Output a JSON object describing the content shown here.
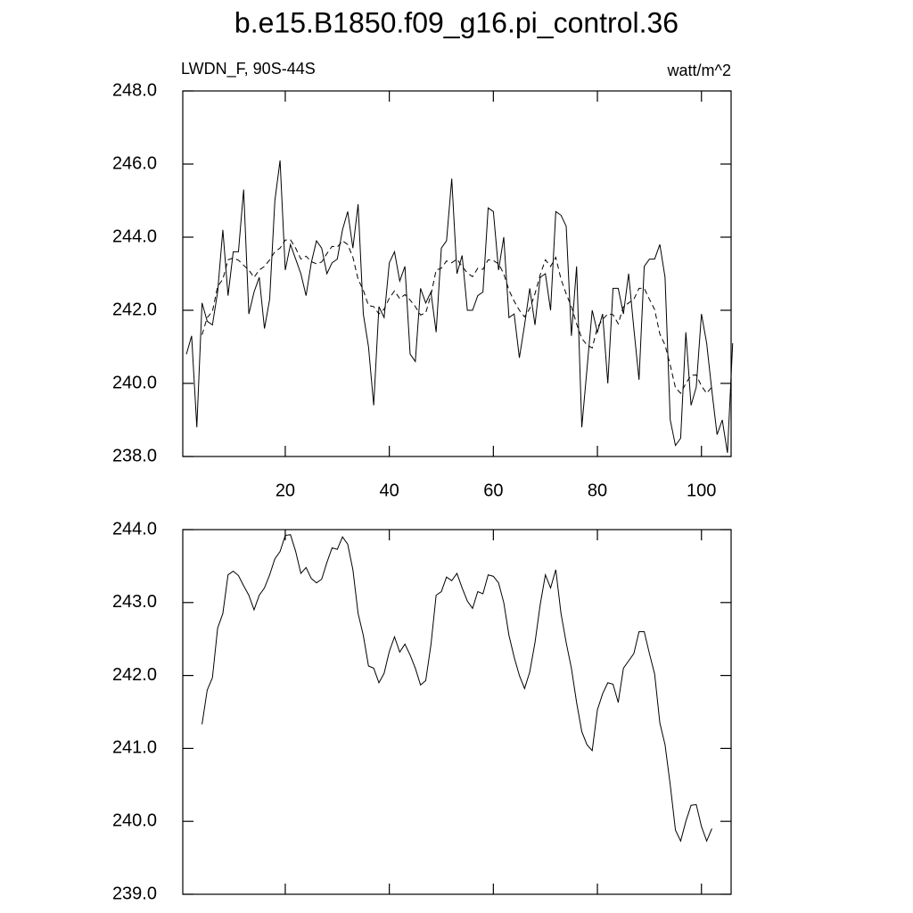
{
  "chart_data": [
    {
      "type": "line",
      "title": "b.e15.B1850.f09_g16.pi_control.36",
      "left_string": "LWDN_F, 90S-44S",
      "right_string": "watt/m^2",
      "xlim": [
        0.3,
        105.7
      ],
      "xticks": [
        20,
        40,
        60,
        80,
        100
      ],
      "xtick_labels": true,
      "ylim": [
        238,
        248
      ],
      "yticks": [
        {
          "value": 238,
          "label": "238.0"
        },
        {
          "value": 240,
          "label": "240.0"
        },
        {
          "value": 242,
          "label": "242.0"
        },
        {
          "value": 244,
          "label": "244.0"
        },
        {
          "value": 246,
          "label": "246.0"
        },
        {
          "value": 248,
          "label": "248.0"
        }
      ],
      "series": [
        {
          "color": "#000000",
          "dash": false,
          "x": [
            1,
            2,
            3,
            4,
            5,
            6,
            7,
            8,
            9,
            10,
            11,
            12,
            13,
            14,
            15,
            16,
            17,
            18,
            19,
            20,
            21,
            22,
            23,
            24,
            25,
            26,
            27,
            28,
            29,
            30,
            31,
            32,
            33,
            34,
            35,
            36,
            37,
            38,
            39,
            40,
            41,
            42,
            43,
            44,
            45,
            46,
            47,
            48,
            49,
            50,
            51,
            52,
            53,
            54,
            55,
            56,
            57,
            58,
            59,
            60,
            61,
            62,
            63,
            64,
            65,
            66,
            67,
            68,
            69,
            70,
            71,
            72,
            73,
            74,
            75,
            76,
            77,
            78,
            79,
            80,
            81,
            82,
            83,
            84,
            85,
            86,
            87,
            88,
            89,
            90,
            91,
            92,
            93,
            94,
            95,
            96,
            97,
            98,
            99,
            100,
            101,
            102,
            103,
            104,
            105,
            106
          ],
          "values": [
            240.8,
            241.3,
            238.8,
            242.2,
            241.7,
            241.6,
            242.5,
            244.2,
            242.4,
            243.6,
            243.6,
            245.3,
            241.9,
            242.5,
            242.9,
            241.5,
            242.3,
            245.0,
            246.1,
            243.1,
            243.8,
            243.4,
            243.0,
            242.4,
            243.3,
            243.9,
            243.7,
            243.0,
            243.3,
            243.4,
            244.2,
            244.7,
            243.7,
            244.9,
            241.9,
            241.0,
            239.4,
            242.1,
            241.8,
            243.3,
            243.6,
            242.8,
            243.2,
            240.8,
            240.6,
            242.6,
            242.2,
            242.5,
            241.4,
            243.7,
            243.9,
            245.6,
            243.0,
            243.5,
            242.0,
            242.0,
            242.4,
            242.5,
            244.8,
            244.7,
            243.1,
            244.0,
            241.8,
            241.9,
            240.7,
            241.6,
            242.6,
            241.6,
            242.9,
            243.0,
            242.0,
            244.7,
            244.6,
            244.3,
            241.3,
            243.2,
            238.8,
            240.4,
            242.0,
            241.4,
            241.9,
            240.0,
            242.6,
            242.6,
            241.9,
            243.0,
            241.5,
            240.1,
            243.2,
            243.4,
            243.4,
            243.8,
            242.9,
            239.0,
            238.3,
            238.5,
            241.4,
            239.4,
            239.9,
            241.9,
            241.1,
            239.8,
            238.6,
            239.0,
            238.1,
            241.1
          ]
        },
        {
          "color": "#000000",
          "dash": true,
          "x": [
            4,
            5,
            6,
            7,
            8,
            9,
            10,
            11,
            12,
            13,
            14,
            15,
            16,
            17,
            18,
            19,
            20,
            21,
            22,
            23,
            24,
            25,
            26,
            27,
            28,
            29,
            30,
            31,
            32,
            33,
            34,
            35,
            36,
            37,
            38,
            39,
            40,
            41,
            42,
            43,
            44,
            45,
            46,
            47,
            48,
            49,
            50,
            51,
            52,
            53,
            54,
            55,
            56,
            57,
            58,
            59,
            60,
            61,
            62,
            63,
            64,
            65,
            66,
            67,
            68,
            69,
            70,
            71,
            72,
            73,
            74,
            75,
            76,
            77,
            78,
            79,
            80,
            81,
            82,
            83,
            84,
            85,
            86,
            87,
            88,
            89,
            90,
            91,
            92,
            93,
            94,
            95,
            96,
            97,
            98,
            99,
            100,
            101,
            102
          ],
          "values": [
            241.33,
            241.8,
            241.97,
            242.65,
            242.85,
            243.38,
            243.43,
            243.37,
            243.23,
            243.1,
            242.9,
            243.1,
            243.2,
            243.38,
            243.6,
            243.7,
            243.92,
            243.93,
            243.7,
            243.4,
            243.48,
            243.33,
            243.27,
            243.32,
            243.55,
            243.75,
            243.73,
            243.9,
            243.8,
            243.45,
            242.85,
            242.55,
            242.13,
            242.1,
            241.9,
            242.03,
            242.33,
            242.53,
            242.32,
            242.43,
            242.28,
            242.1,
            241.87,
            241.93,
            242.42,
            243.1,
            243.15,
            243.35,
            243.3,
            243.4,
            243.2,
            243.02,
            242.92,
            243.15,
            243.12,
            243.38,
            243.36,
            243.27,
            243.0,
            242.55,
            242.25,
            242.0,
            241.82,
            242.05,
            242.45,
            242.97,
            243.38,
            243.2,
            243.45,
            242.85,
            242.45,
            242.1,
            241.63,
            241.23,
            241.05,
            240.97,
            241.53,
            241.75,
            241.9,
            241.88,
            241.63,
            242.1,
            242.2,
            242.3,
            242.6,
            242.6,
            242.3,
            242.02,
            241.35,
            241.05,
            240.5,
            239.88,
            239.73,
            240.0,
            240.22,
            240.23,
            239.93,
            239.73,
            239.9
          ]
        }
      ]
    },
    {
      "type": "line",
      "xlim": [
        0.3,
        105.7
      ],
      "xticks": [
        20,
        40,
        60,
        80,
        100
      ],
      "xtick_labels": false,
      "ylim": [
        239,
        244
      ],
      "yticks": [
        {
          "value": 239,
          "label": "239.0"
        },
        {
          "value": 240,
          "label": "240.0"
        },
        {
          "value": 241,
          "label": "241.0"
        },
        {
          "value": 242,
          "label": "242.0"
        },
        {
          "value": 243,
          "label": "243.0"
        },
        {
          "value": 244,
          "label": "244.0"
        }
      ],
      "series": [
        {
          "color": "#000000",
          "dash": false,
          "x": [
            4,
            5,
            6,
            7,
            8,
            9,
            10,
            11,
            12,
            13,
            14,
            15,
            16,
            17,
            18,
            19,
            20,
            21,
            22,
            23,
            24,
            25,
            26,
            27,
            28,
            29,
            30,
            31,
            32,
            33,
            34,
            35,
            36,
            37,
            38,
            39,
            40,
            41,
            42,
            43,
            44,
            45,
            46,
            47,
            48,
            49,
            50,
            51,
            52,
            53,
            54,
            55,
            56,
            57,
            58,
            59,
            60,
            61,
            62,
            63,
            64,
            65,
            66,
            67,
            68,
            69,
            70,
            71,
            72,
            73,
            74,
            75,
            76,
            77,
            78,
            79,
            80,
            81,
            82,
            83,
            84,
            85,
            86,
            87,
            88,
            89,
            90,
            91,
            92,
            93,
            94,
            95,
            96,
            97,
            98,
            99,
            100,
            101,
            102
          ],
          "values": [
            241.33,
            241.8,
            241.97,
            242.65,
            242.85,
            243.38,
            243.43,
            243.37,
            243.23,
            243.1,
            242.9,
            243.1,
            243.2,
            243.38,
            243.6,
            243.7,
            243.92,
            243.93,
            243.7,
            243.4,
            243.48,
            243.33,
            243.27,
            243.32,
            243.55,
            243.75,
            243.73,
            243.9,
            243.8,
            243.45,
            242.85,
            242.55,
            242.13,
            242.1,
            241.9,
            242.03,
            242.33,
            242.53,
            242.32,
            242.43,
            242.28,
            242.1,
            241.87,
            241.93,
            242.42,
            243.1,
            243.15,
            243.35,
            243.3,
            243.4,
            243.2,
            243.02,
            242.92,
            243.15,
            243.12,
            243.38,
            243.36,
            243.27,
            243.0,
            242.55,
            242.25,
            242.0,
            241.82,
            242.05,
            242.45,
            242.97,
            243.38,
            243.2,
            243.45,
            242.85,
            242.45,
            242.1,
            241.63,
            241.23,
            241.05,
            240.97,
            241.53,
            241.75,
            241.9,
            241.88,
            241.63,
            242.1,
            242.2,
            242.3,
            242.6,
            242.6,
            242.3,
            242.02,
            241.35,
            241.05,
            240.5,
            239.88,
            239.73,
            240.0,
            240.22,
            240.23,
            239.93,
            239.73,
            239.9
          ]
        }
      ]
    }
  ]
}
